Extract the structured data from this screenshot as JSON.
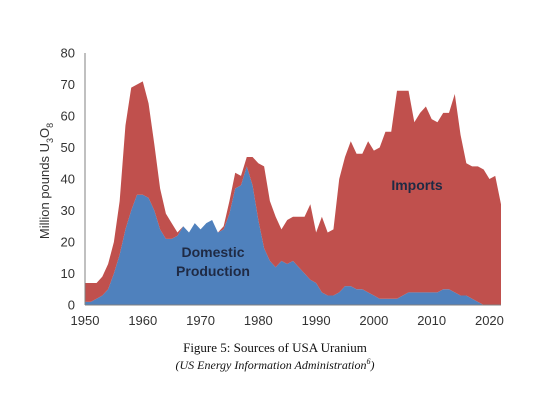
{
  "chart_data": {
    "type": "area",
    "stacked": true,
    "x": [
      1950,
      1951,
      1952,
      1953,
      1954,
      1955,
      1956,
      1957,
      1958,
      1959,
      1960,
      1961,
      1962,
      1963,
      1964,
      1965,
      1966,
      1967,
      1968,
      1969,
      1970,
      1971,
      1972,
      1973,
      1974,
      1975,
      1976,
      1977,
      1978,
      1979,
      1980,
      1981,
      1982,
      1983,
      1984,
      1985,
      1986,
      1987,
      1988,
      1989,
      1990,
      1991,
      1992,
      1993,
      1994,
      1995,
      1996,
      1997,
      1998,
      1999,
      2000,
      2001,
      2002,
      2003,
      2004,
      2005,
      2006,
      2007,
      2008,
      2009,
      2010,
      2011,
      2012,
      2013,
      2014,
      2015,
      2016,
      2017,
      2018,
      2019,
      2020,
      2021,
      2022
    ],
    "series": [
      {
        "name": "Domestic Production",
        "color": "#4f81bd",
        "values": [
          1,
          1,
          2,
          3,
          5,
          10,
          16,
          24,
          30,
          35,
          35,
          34,
          30,
          24,
          21,
          21,
          22,
          25,
          23,
          26,
          24,
          26,
          27,
          23,
          24,
          29,
          37,
          38,
          44,
          38,
          27,
          18,
          14,
          12,
          14,
          13,
          14,
          12,
          10,
          8,
          7,
          4,
          3,
          3,
          4,
          6,
          6,
          5,
          5,
          4,
          3,
          2,
          2,
          2,
          2,
          3,
          4,
          4,
          4,
          4,
          4,
          4,
          5,
          5,
          4,
          3,
          3,
          2,
          1,
          0,
          0,
          0,
          0
        ]
      },
      {
        "name": "Imports",
        "color": "#c0504d",
        "values": [
          6,
          6,
          5,
          6,
          8,
          10,
          17,
          33,
          39,
          35,
          36,
          30,
          21,
          13,
          8,
          5,
          1,
          0,
          0,
          0,
          0,
          0,
          0,
          0,
          1,
          4,
          5,
          3,
          3,
          9,
          18,
          26,
          19,
          16,
          10,
          14,
          14,
          16,
          18,
          24,
          16,
          24,
          20,
          21,
          36,
          41,
          46,
          43,
          43,
          48,
          46,
          48,
          53,
          53,
          66,
          65,
          64,
          54,
          57,
          59,
          55,
          54,
          56,
          56,
          63,
          51,
          42,
          42,
          43,
          43,
          40,
          41,
          32
        ]
      }
    ],
    "xlim": [
      1950,
      2022
    ],
    "ylim": [
      0,
      80
    ],
    "xticks": [
      1950,
      1960,
      1970,
      1980,
      1990,
      2000,
      2010,
      2020
    ],
    "yticks": [
      0,
      10,
      20,
      30,
      40,
      50,
      60,
      70,
      80
    ],
    "ylabel": "Million pounds U3O8",
    "ylabel_main": "Million pounds U",
    "ylabel_sub1": "3",
    "ylabel_mid": "O",
    "ylabel_sub2": "8",
    "grid": false,
    "legend": "none",
    "annotations": [
      "Imports",
      "Domestic",
      "Production"
    ]
  },
  "caption": {
    "line1": "Figure 5: Sources of USA Uranium",
    "line2": "US Energy Information Administration",
    "line2_sup": "6"
  }
}
